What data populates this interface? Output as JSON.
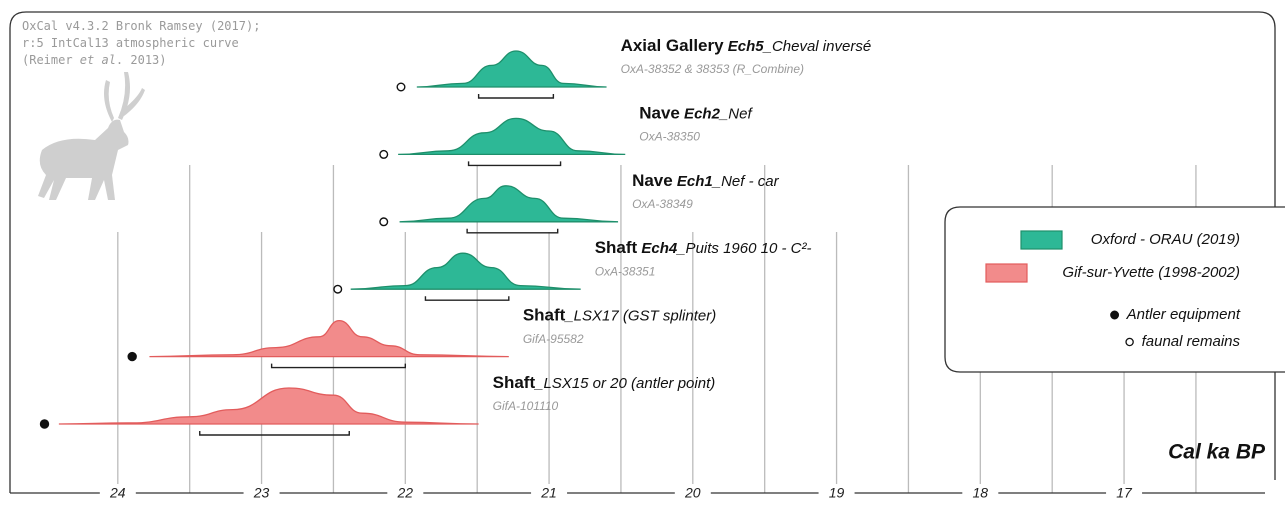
{
  "chart_data": {
    "type": "calibration",
    "notes": [
      [
        {
          "text": "OxCal v4.3.2 Bronk Ramsey (2017);",
          "style": "normal"
        }
      ],
      [
        {
          "text": "r:5 IntCal13 atmospheric curve",
          "style": "normal"
        }
      ],
      [
        {
          "text": "(Reimer ",
          "style": "normal"
        },
        {
          "text": "et al",
          "style": "italic"
        },
        {
          "text": ". 2013)",
          "style": "normal"
        }
      ]
    ],
    "x_label": "Cal ka BP",
    "xlim": [
      24.75,
      15.95
    ],
    "xticks": [
      24,
      23,
      22,
      21,
      20,
      19,
      18,
      17
    ],
    "minor_ticks": [
      23.5,
      22.5,
      21.5,
      20.5,
      19.5,
      18.5,
      17.5,
      16.5
    ],
    "grid": true,
    "legend_position": "right",
    "series": [
      {
        "name": "Oxford - ORAU (2019)",
        "color": "#2db896",
        "edge": "#1e8f6b"
      },
      {
        "name": "Gif-sur-Yvette (1998-2002)",
        "color": "#f28b8b",
        "edge": "#e25c5c"
      }
    ],
    "markers": [
      {
        "name": "Antler equipment",
        "fill": "filled"
      },
      {
        "name": "faunal remains",
        "fill": "open"
      }
    ],
    "samples": [
      {
        "label": [
          {
            "text": "Axial Gallery",
            "style": "bold"
          },
          {
            "text": " Ech5",
            "style": "bolditalic"
          },
          {
            "text": "_Cheval inversé",
            "style": "italic"
          }
        ],
        "lab": "OxA-38352 & 38353 (R_Combine)",
        "series": 0,
        "marker": 1,
        "marker_x": 22.03,
        "range": [
          21.49,
          20.97
        ],
        "x": [
          21.92,
          21.6,
          21.4,
          21.23,
          21.05,
          20.9,
          20.6
        ],
        "density": [
          0,
          0.1,
          0.6,
          1,
          0.6,
          0.1,
          0
        ]
      },
      {
        "label": [
          {
            "text": "Nave",
            "style": "bold"
          },
          {
            "text": " Ech2",
            "style": "bolditalic"
          },
          {
            "text": "_Nef",
            "style": "italic"
          }
        ],
        "lab": "OxA-38350",
        "series": 0,
        "marker": 1,
        "marker_x": 22.15,
        "range": [
          21.56,
          20.92
        ],
        "x": [
          22.05,
          21.7,
          21.45,
          21.23,
          21.0,
          20.8,
          20.47
        ],
        "density": [
          0,
          0.1,
          0.6,
          1,
          0.65,
          0.1,
          0
        ]
      },
      {
        "label": [
          {
            "text": "Nave",
            "style": "bold"
          },
          {
            "text": " Ech1",
            "style": "bolditalic"
          },
          {
            "text": "_Nef - car",
            "style": "italic"
          }
        ],
        "lab": "OxA-38349",
        "series": 0,
        "marker": 1,
        "marker_x": 22.15,
        "range": [
          21.57,
          20.94
        ],
        "x": [
          22.04,
          21.7,
          21.45,
          21.3,
          21.1,
          20.9,
          20.52
        ],
        "density": [
          0,
          0.1,
          0.65,
          1,
          0.65,
          0.1,
          0
        ]
      },
      {
        "label": [
          {
            "text": "Shaft",
            "style": "bold"
          },
          {
            "text": " Ech4",
            "style": "bolditalic"
          },
          {
            "text": "_Puits 1960 10 - C²-",
            "style": "italic"
          }
        ],
        "lab": "OxA-38351",
        "series": 0,
        "marker": 1,
        "marker_x": 22.47,
        "range": [
          21.86,
          21.28
        ],
        "x": [
          22.38,
          22.0,
          21.78,
          21.6,
          21.4,
          21.2,
          20.78
        ],
        "density": [
          0,
          0.1,
          0.6,
          1,
          0.6,
          0.1,
          0
        ]
      },
      {
        "label": [
          {
            "text": "Shaft",
            "style": "bold"
          },
          {
            "text": "_LSX17 (GST splinter)",
            "style": "italic"
          }
        ],
        "lab": "GifA-95582",
        "series": 1,
        "marker": 0,
        "marker_x": 23.9,
        "range": [
          22.93,
          22.0
        ],
        "x": [
          23.78,
          23.2,
          22.9,
          22.6,
          22.46,
          22.3,
          22.1,
          21.9,
          21.28
        ],
        "density": [
          0,
          0.05,
          0.25,
          0.55,
          1,
          0.55,
          0.3,
          0.05,
          0
        ]
      },
      {
        "label": [
          {
            "text": "Shaft",
            "style": "bold"
          },
          {
            "text": "_LSX15 or 20 (antler point)",
            "style": "italic"
          }
        ],
        "lab": "GifA-101110",
        "series": 1,
        "marker": 0,
        "marker_x": 24.51,
        "range": [
          23.43,
          22.39
        ],
        "x": [
          24.41,
          23.9,
          23.5,
          23.2,
          22.81,
          22.5,
          22.3,
          22.0,
          21.49
        ],
        "density": [
          0,
          0.03,
          0.2,
          0.4,
          1,
          0.8,
          0.3,
          0.05,
          0
        ]
      }
    ]
  }
}
